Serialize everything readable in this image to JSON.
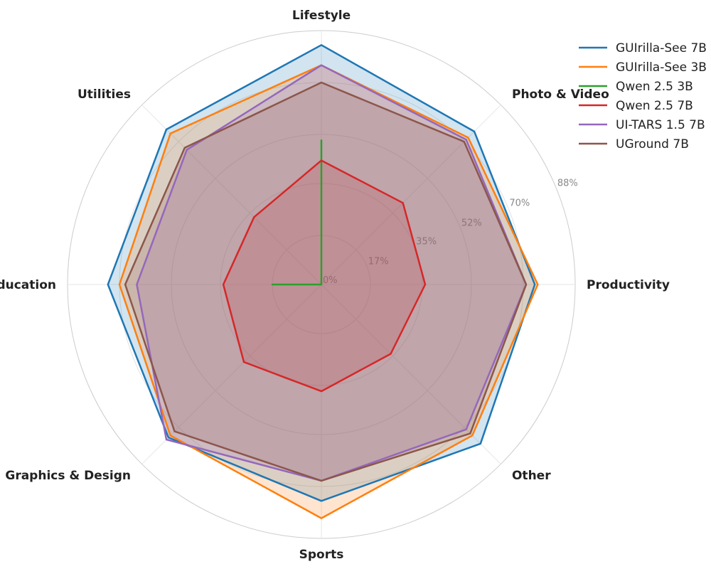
{
  "chart_data": {
    "type": "radar",
    "categories": [
      "Productivity",
      "Photo & Video",
      "Lifestyle",
      "Utilities",
      "Education",
      "Graphics & Design",
      "Sports",
      "Other"
    ],
    "rlim": [
      0,
      88
    ],
    "ticks": [
      0,
      17,
      35,
      52,
      70,
      88
    ],
    "tick_labels": [
      "0%",
      "17%",
      "35%",
      "52%",
      "70%",
      "88%"
    ],
    "grid": true,
    "legend_position": "top-right",
    "series": [
      {
        "name": "GUIrilla-See 7B",
        "color": "#1f77b4",
        "fill": true,
        "values": [
          74,
          75,
          83,
          76,
          74,
          75,
          75,
          78
        ]
      },
      {
        "name": "GUIrilla-See 3B",
        "color": "#ff7f0e",
        "fill": true,
        "values": [
          75,
          72,
          76,
          74,
          70,
          74,
          81,
          74
        ]
      },
      {
        "name": "Qwen 2.5 3B",
        "color": "#2ca02c",
        "fill": false,
        "values": [
          0,
          0,
          50,
          0,
          17,
          0,
          0,
          0
        ]
      },
      {
        "name": "Qwen 2.5 7B",
        "color": "#d62728",
        "fill": true,
        "values": [
          36,
          40,
          43,
          33,
          34,
          38,
          37,
          34
        ]
      },
      {
        "name": "UI-TARS 1.5 7B",
        "color": "#9467bd",
        "fill": true,
        "values": [
          71,
          71,
          76,
          66,
          64,
          76,
          68,
          71
        ]
      },
      {
        "name": "UGround 7B",
        "color": "#8c564b",
        "fill": true,
        "values": [
          71,
          70,
          70,
          67,
          68,
          72,
          68,
          73
        ]
      }
    ]
  }
}
